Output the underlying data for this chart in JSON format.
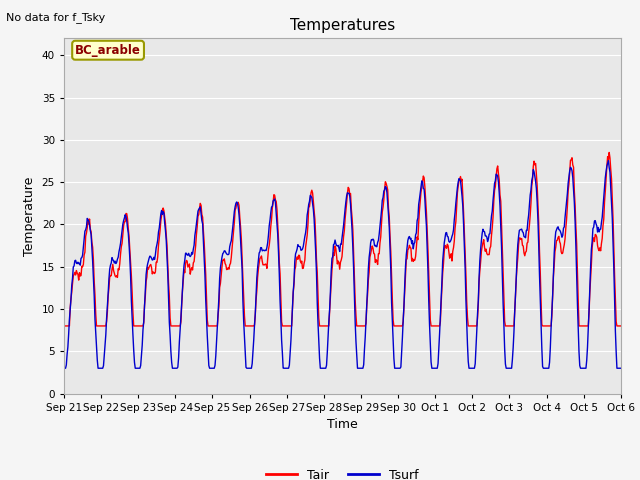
{
  "title": "Temperatures",
  "xlabel": "Time",
  "ylabel": "Temperature",
  "note": "No data for f_Tsky",
  "location_label": "BC_arable",
  "ylim": [
    0,
    42
  ],
  "yticks": [
    0,
    5,
    10,
    15,
    20,
    25,
    30,
    35,
    40
  ],
  "xtick_labels": [
    "Sep 21",
    "Sep 22",
    "Sep 23",
    "Sep 24",
    "Sep 25",
    "Sep 26",
    "Sep 27",
    "Sep 28",
    "Sep 29",
    "Sep 30",
    "Oct 1",
    "Oct 2",
    "Oct 3",
    "Oct 4",
    "Oct 5",
    "Oct 6"
  ],
  "tair_color": "#ff0000",
  "tsurf_color": "#0000cd",
  "fig_facecolor": "#f5f5f5",
  "ax_facecolor": "#e8e8e8",
  "grid_color": "#ffffff",
  "legend_labels": [
    "Tair",
    "Tsurf"
  ],
  "n_days": 15
}
